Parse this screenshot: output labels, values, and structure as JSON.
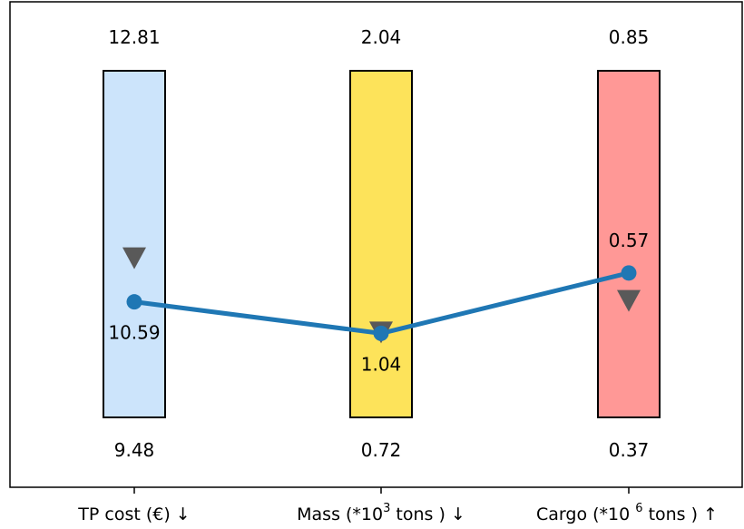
{
  "chart_data": {
    "type": "parallel-range",
    "title": "",
    "axes": [
      {
        "name": "TP cost",
        "label": {
          "main": "TP cost (€)",
          "sup": "",
          "tail": "",
          "arrow": "↓"
        },
        "max": 12.81,
        "min": 9.48,
        "max_label": "12.81",
        "min_label": "9.48",
        "value": 10.59,
        "value_label": "10.59",
        "marker": 11.0,
        "color": "#cce4fb"
      },
      {
        "name": "Mass",
        "label": {
          "main": "Mass (*10",
          "sup": "3",
          "tail": " tons ) ",
          "arrow": "↓"
        },
        "max": 2.04,
        "min": 0.72,
        "max_label": "2.04",
        "min_label": "0.72",
        "value": 1.04,
        "value_label": "1.04",
        "marker": 1.04,
        "color": "#fde35a"
      },
      {
        "name": "Cargo",
        "label": {
          "main": "Cargo (*10 ",
          "sup": "6",
          "tail": " tons ) ",
          "arrow": "↑"
        },
        "max": 0.85,
        "min": 0.37,
        "max_label": "0.85",
        "min_label": "0.37",
        "value": 0.57,
        "value_label": "0.57",
        "marker": 0.53,
        "color": "#ff9896"
      }
    ],
    "line_color": "#1f77b4",
    "marker_color": "#595959"
  }
}
